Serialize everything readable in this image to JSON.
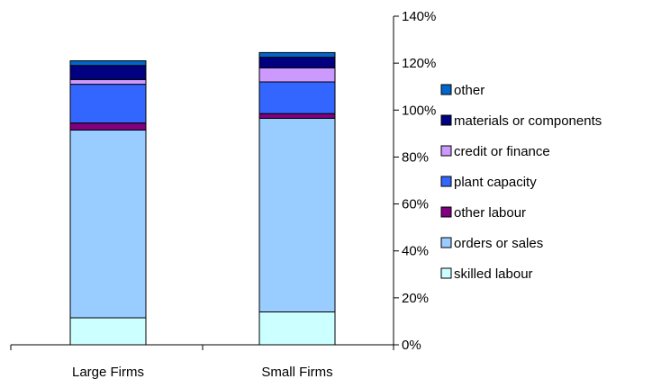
{
  "chart_data": {
    "type": "bar",
    "stacked": true,
    "categories": [
      "Large Firms",
      "Small Firms"
    ],
    "series": [
      {
        "name": "skilled labour",
        "color": "#ccffff",
        "values": [
          11.5,
          14
        ]
      },
      {
        "name": "orders or sales",
        "color": "#99ccff",
        "values": [
          80,
          82.5
        ]
      },
      {
        "name": "other labour",
        "color": "#800080",
        "values": [
          3,
          2
        ]
      },
      {
        "name": "plant capacity",
        "color": "#3366ff",
        "values": [
          16.5,
          13.5
        ]
      },
      {
        "name": "credit or finance",
        "color": "#cc99ff",
        "values": [
          2,
          6
        ]
      },
      {
        "name": "materials or components",
        "color": "#000080",
        "values": [
          6,
          4.5
        ]
      },
      {
        "name": "other",
        "color": "#0066cc",
        "values": [
          2,
          2
        ]
      }
    ],
    "y_axis": {
      "position": "right",
      "min": 0,
      "max": 140,
      "step": 20,
      "tick_labels": [
        "0%",
        "20%",
        "40%",
        "60%",
        "80%",
        "100%",
        "120%",
        "140%"
      ]
    },
    "legend_order": [
      "other",
      "materials or components",
      "credit or finance",
      "plant capacity",
      "other labour",
      "orders or sales",
      "skilled labour"
    ],
    "legend_position": "right",
    "grid": false,
    "title": "",
    "xlabel": "",
    "ylabel": ""
  }
}
